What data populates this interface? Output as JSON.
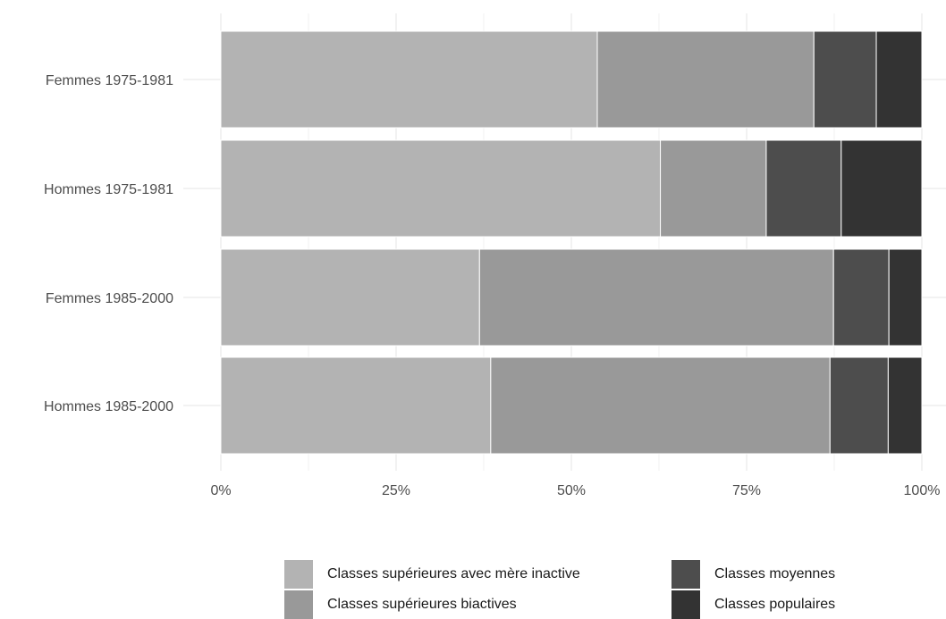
{
  "chart_data": {
    "type": "bar",
    "orientation": "horizontal",
    "stacked": true,
    "normalized": true,
    "title": "",
    "xlabel": "",
    "ylabel": "",
    "xlim": [
      0,
      1
    ],
    "x_ticks": [
      0,
      0.25,
      0.5,
      0.75,
      1
    ],
    "x_tick_labels": [
      "0%",
      "25%",
      "50%",
      "75%",
      "100%"
    ],
    "categories": [
      "Femmes 1975-1981",
      "Hommes 1975-1981",
      "Femmes 1985-2000",
      "Hommes 1985-2000"
    ],
    "series": [
      {
        "name": "Classes supérieures avec mère inactive",
        "color": "#b3b3b3",
        "values": [
          0.537,
          0.627,
          0.369,
          0.385
        ]
      },
      {
        "name": "Classes supérieures biactives",
        "color": "#999999",
        "values": [
          0.309,
          0.151,
          0.505,
          0.484
        ]
      },
      {
        "name": "Classes moyennes",
        "color": "#4d4d4d",
        "values": [
          0.089,
          0.107,
          0.079,
          0.083
        ]
      },
      {
        "name": "Classes populaires",
        "color": "#333333",
        "values": [
          0.065,
          0.115,
          0.047,
          0.048
        ]
      }
    ],
    "grid": true,
    "legend_position": "bottom"
  }
}
